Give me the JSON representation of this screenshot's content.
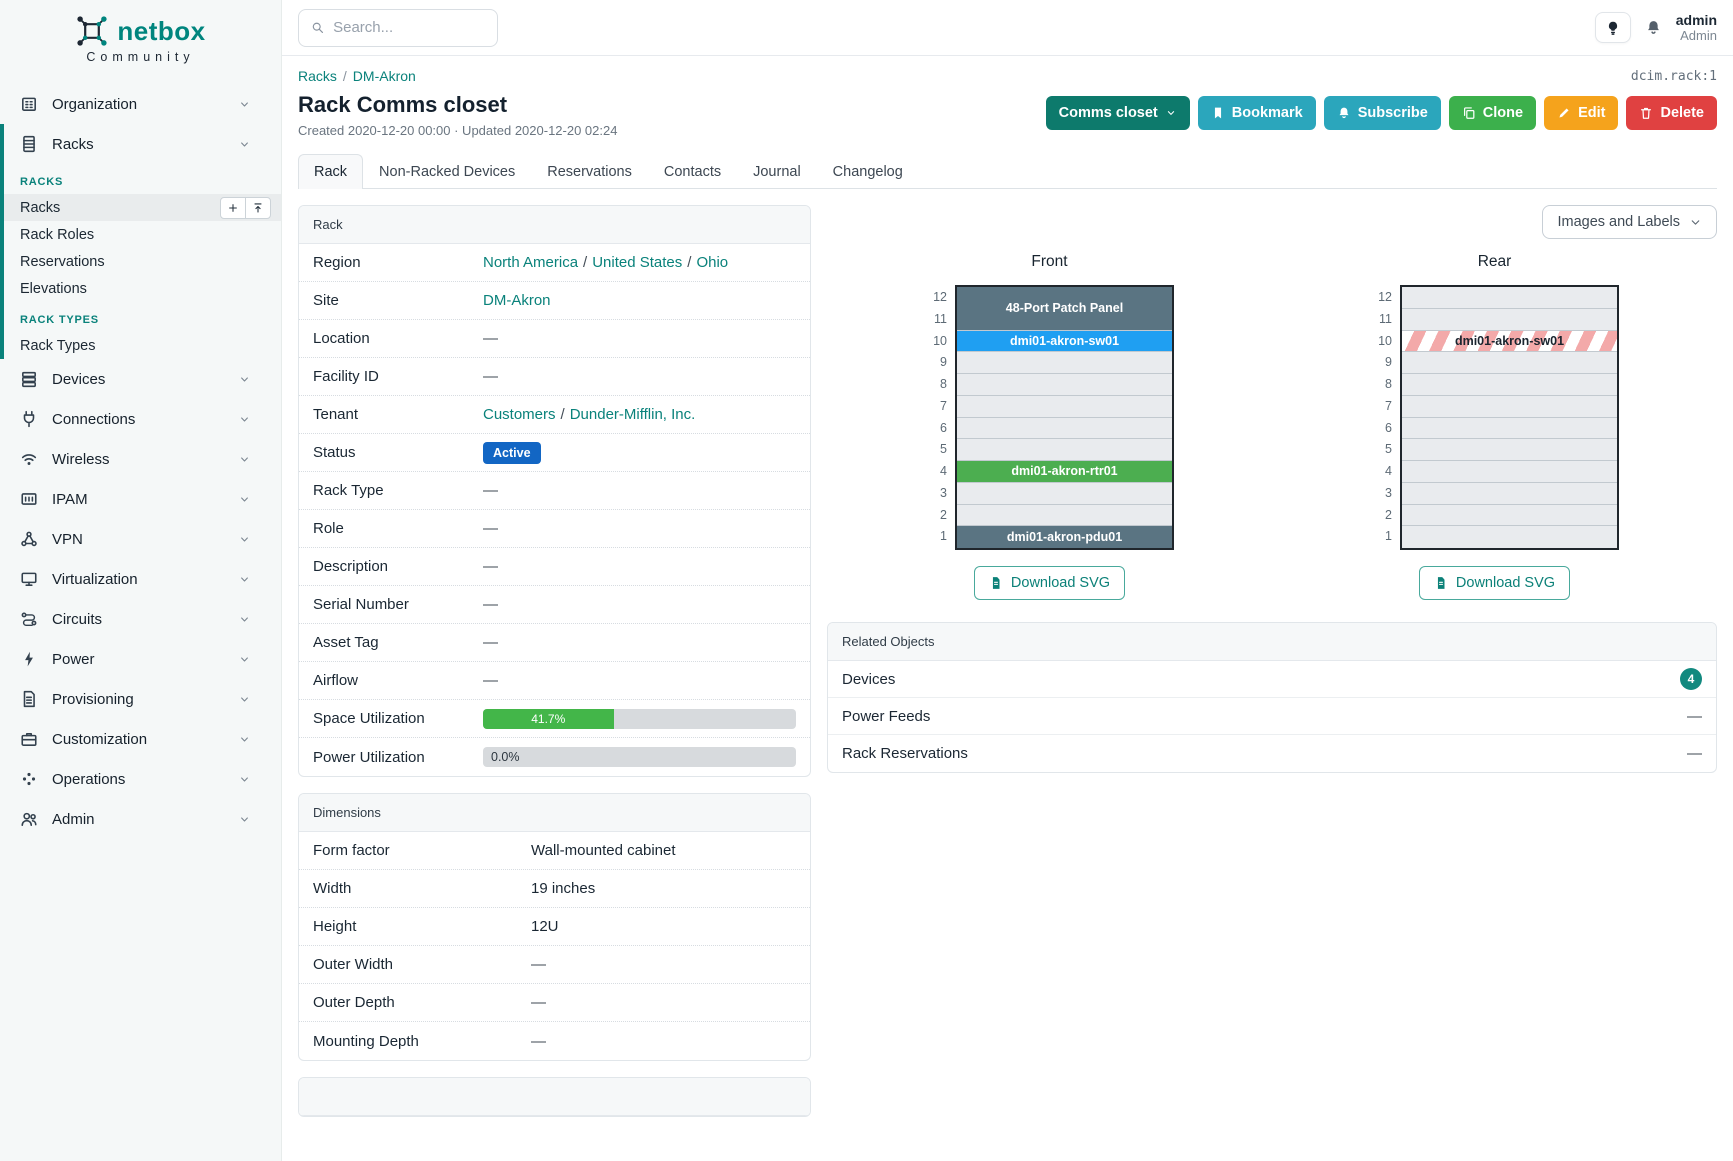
{
  "brand": {
    "name": "netbox",
    "subtitle": "Community"
  },
  "topbar": {
    "search_placeholder": "Search...",
    "user": {
      "name": "admin",
      "role": "Admin"
    }
  },
  "sidebar": {
    "items": [
      {
        "label": "Organization",
        "icon": "organization-icon",
        "chevron": true
      },
      {
        "label": "Racks",
        "icon": "racks-icon",
        "chevron": true,
        "expanded": true,
        "subsections": [
          {
            "header": "RACKS",
            "items": [
              {
                "label": "Racks",
                "active": true,
                "actions": [
                  "plus-icon",
                  "upload-icon"
                ]
              },
              {
                "label": "Rack Roles"
              },
              {
                "label": "Reservations"
              },
              {
                "label": "Elevations"
              }
            ]
          },
          {
            "header": "RACK TYPES",
            "items": [
              {
                "label": "Rack Types"
              }
            ]
          }
        ]
      },
      {
        "label": "Devices",
        "icon": "devices-icon",
        "chevron": true
      },
      {
        "label": "Connections",
        "icon": "connections-icon",
        "chevron": true
      },
      {
        "label": "Wireless",
        "icon": "wireless-icon",
        "chevron": true
      },
      {
        "label": "IPAM",
        "icon": "ipam-icon",
        "chevron": true
      },
      {
        "label": "VPN",
        "icon": "vpn-icon",
        "chevron": true
      },
      {
        "label": "Virtualization",
        "icon": "virtualization-icon",
        "chevron": true
      },
      {
        "label": "Circuits",
        "icon": "circuits-icon",
        "chevron": true
      },
      {
        "label": "Power",
        "icon": "power-icon",
        "chevron": true
      },
      {
        "label": "Provisioning",
        "icon": "provisioning-icon",
        "chevron": true
      },
      {
        "label": "Customization",
        "icon": "customization-icon",
        "chevron": true
      },
      {
        "label": "Operations",
        "icon": "operations-icon",
        "chevron": true
      },
      {
        "label": "Admin",
        "icon": "admin-icon",
        "chevron": true
      }
    ]
  },
  "header": {
    "breadcrumb": [
      "Racks",
      "DM-Akron"
    ],
    "object_id": "dcim.rack:1",
    "title": "Rack Comms closet",
    "meta": "Created 2020-12-20 00:00 · Updated 2020-12-20 02:24",
    "actions": [
      {
        "label": "Comms closet",
        "style": "teal-dark",
        "caret": true
      },
      {
        "label": "Bookmark",
        "icon": "bookmark-icon",
        "style": "cyan"
      },
      {
        "label": "Subscribe",
        "icon": "bell-icon",
        "style": "cyan"
      },
      {
        "label": "Clone",
        "icon": "copy-icon",
        "style": "green"
      },
      {
        "label": "Edit",
        "icon": "pencil-icon",
        "style": "orange"
      },
      {
        "label": "Delete",
        "icon": "trash-icon",
        "style": "red"
      }
    ]
  },
  "tabs": [
    {
      "label": "Rack",
      "active": true
    },
    {
      "label": "Non-Racked Devices"
    },
    {
      "label": "Reservations"
    },
    {
      "label": "Contacts"
    },
    {
      "label": "Journal"
    },
    {
      "label": "Changelog"
    }
  ],
  "rack_panel": {
    "title": "Rack",
    "rows": [
      {
        "label": "Region",
        "type": "links",
        "parts": [
          "North America",
          "United States",
          "Ohio"
        ]
      },
      {
        "label": "Site",
        "type": "links",
        "parts": [
          "DM-Akron"
        ]
      },
      {
        "label": "Location",
        "type": "dash"
      },
      {
        "label": "Facility ID",
        "type": "dash"
      },
      {
        "label": "Tenant",
        "type": "links",
        "parts": [
          "Customers",
          "Dunder-Mifflin, Inc."
        ]
      },
      {
        "label": "Status",
        "type": "badge",
        "text": "Active"
      },
      {
        "label": "Rack Type",
        "type": "dash"
      },
      {
        "label": "Role",
        "type": "dash"
      },
      {
        "label": "Description",
        "type": "dash"
      },
      {
        "label": "Serial Number",
        "type": "dash"
      },
      {
        "label": "Asset Tag",
        "type": "dash"
      },
      {
        "label": "Airflow",
        "type": "dash"
      },
      {
        "label": "Space Utilization",
        "type": "progress",
        "percent": 41.7,
        "text": "41.7%",
        "color": "green"
      },
      {
        "label": "Power Utilization",
        "type": "progress",
        "percent": 0,
        "text": "0.0%",
        "color": "gray"
      }
    ],
    "dash_char": "—"
  },
  "dimensions_panel": {
    "title": "Dimensions",
    "rows": [
      {
        "label": "Form factor",
        "type": "text",
        "value": "Wall-mounted cabinet"
      },
      {
        "label": "Width",
        "type": "text",
        "value": "19 inches"
      },
      {
        "label": "Height",
        "type": "text",
        "value": "12U"
      },
      {
        "label": "Outer Width",
        "type": "dash"
      },
      {
        "label": "Outer Depth",
        "type": "dash"
      },
      {
        "label": "Mounting Depth",
        "type": "dash"
      }
    ]
  },
  "elevations": {
    "view_label": "Images and Labels",
    "download_label": "Download SVG",
    "units_total": 12,
    "front": {
      "title": "Front",
      "slots": [
        {
          "u": 2,
          "label": "48-Port Patch Panel",
          "style": "slate"
        },
        {
          "u": 1,
          "label": "dmi01-akron-sw01",
          "style": "blue"
        },
        {
          "u": 1,
          "label": "",
          "style": "empty"
        },
        {
          "u": 1,
          "label": "",
          "style": "empty"
        },
        {
          "u": 1,
          "label": "",
          "style": "empty"
        },
        {
          "u": 1,
          "label": "",
          "style": "empty"
        },
        {
          "u": 1,
          "label": "",
          "style": "empty"
        },
        {
          "u": 1,
          "label": "dmi01-akron-rtr01",
          "style": "green"
        },
        {
          "u": 1,
          "label": "",
          "style": "empty"
        },
        {
          "u": 1,
          "label": "",
          "style": "empty"
        },
        {
          "u": 1,
          "label": "dmi01-akron-pdu01",
          "style": "slate"
        }
      ]
    },
    "rear": {
      "title": "Rear",
      "slots": [
        {
          "u": 1,
          "label": "",
          "style": "empty"
        },
        {
          "u": 1,
          "label": "",
          "style": "empty"
        },
        {
          "u": 1,
          "label": "dmi01-akron-sw01",
          "style": "striped"
        },
        {
          "u": 1,
          "label": "",
          "style": "empty"
        },
        {
          "u": 1,
          "label": "",
          "style": "empty"
        },
        {
          "u": 1,
          "label": "",
          "style": "empty"
        },
        {
          "u": 1,
          "label": "",
          "style": "empty"
        },
        {
          "u": 1,
          "label": "",
          "style": "empty"
        },
        {
          "u": 1,
          "label": "",
          "style": "empty"
        },
        {
          "u": 1,
          "label": "",
          "style": "empty"
        },
        {
          "u": 1,
          "label": "",
          "style": "empty"
        },
        {
          "u": 1,
          "label": "",
          "style": "empty"
        }
      ]
    }
  },
  "related_objects": {
    "title": "Related Objects",
    "rows": [
      {
        "label": "Devices",
        "badge": "4"
      },
      {
        "label": "Power Feeds",
        "value": "—"
      },
      {
        "label": "Rack Reservations",
        "value": "—"
      }
    ]
  },
  "colors": {
    "accent_teal": "#00857e",
    "status_active_blue": "#1266c4",
    "utilization_green": "#43b649",
    "device_slate": "#5a7482",
    "device_blue": "#1f9ff2",
    "device_green": "#4cae50",
    "reserved_stripe_red": "#f3a9a9"
  }
}
